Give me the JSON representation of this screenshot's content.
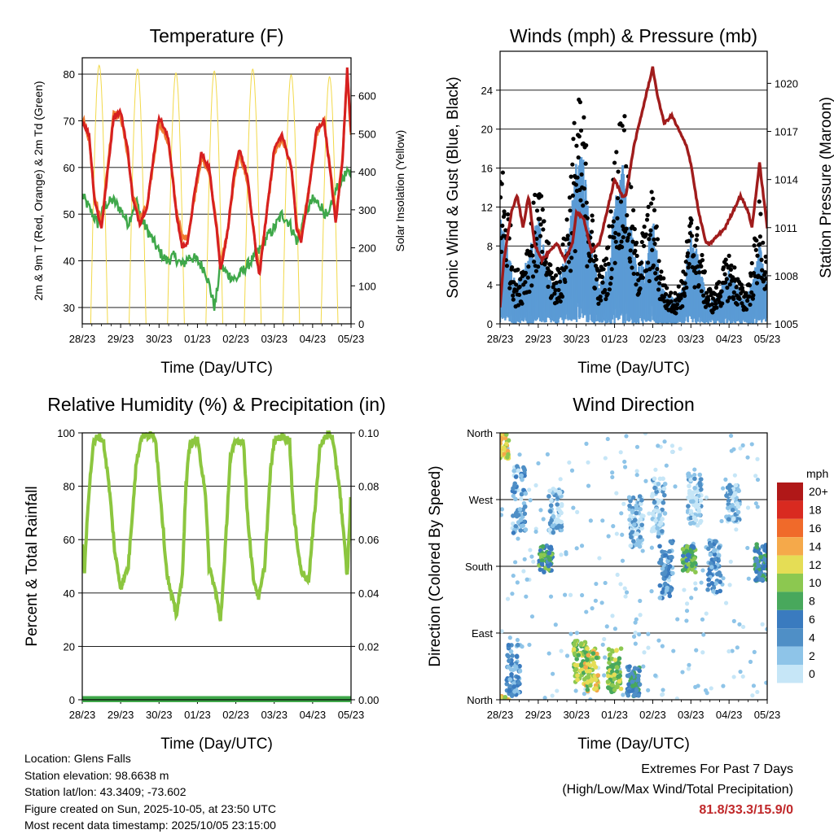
{
  "x_ticks": [
    "28/23",
    "29/23",
    "30/23",
    "01/23",
    "02/23",
    "03/23",
    "04/23",
    "05/23"
  ],
  "xlabel": "Time (Day/UTC)",
  "colors": {
    "temp2m": "#d62020",
    "temp9m": "#f07a30",
    "dewpoint": "#3fa84a",
    "solar": "#f2d94a",
    "sonic": "#5b9bd5",
    "gust": "#000000",
    "pressure": "#a01c1c",
    "rh": "#8cc63f",
    "precip": "#3fa84a",
    "highlight": "#c0282a"
  },
  "chart_data": [
    {
      "type": "line",
      "title": "Temperature (F)",
      "ylabel": "2m & 9m T (Red, Orange) & 2m Td (Green)",
      "ylabel_right": "Solar Insolation (Yellow)",
      "ylim": [
        26.5,
        83.5
      ],
      "ylim_right": [
        0,
        700
      ],
      "yticks": [
        30,
        40,
        50,
        60,
        70,
        80
      ],
      "yticks_right": [
        0,
        100,
        200,
        300,
        400,
        500,
        600
      ],
      "series": [
        {
          "name": "2m T",
          "x": [
            0,
            0.18,
            0.32,
            0.5,
            0.62,
            0.82,
            1.0,
            1.18,
            1.32,
            1.5,
            1.7,
            1.85,
            2.0,
            2.25,
            2.45,
            2.6,
            2.75,
            2.95,
            3.1,
            3.3,
            3.5,
            3.6,
            3.78,
            3.95,
            4.1,
            4.3,
            4.55,
            4.62,
            4.8,
            5.0,
            5.2,
            5.45,
            5.58,
            5.7,
            5.9,
            6.1,
            6.3,
            6.5,
            6.6,
            6.78,
            6.9,
            7.0
          ],
          "values": [
            70,
            67,
            53,
            47,
            56,
            71,
            72,
            64,
            53,
            48,
            52,
            62,
            71,
            66,
            50,
            43,
            44,
            56,
            63,
            60,
            47,
            38,
            46,
            58,
            64,
            58,
            40,
            37,
            50,
            64,
            67,
            60,
            47,
            44,
            55,
            68,
            70,
            56,
            48,
            62,
            81,
            68
          ]
        },
        {
          "name": "9m T",
          "x": [
            0,
            0.18,
            0.32,
            0.5,
            0.62,
            0.82,
            1.0,
            1.18,
            1.32,
            1.5,
            1.7,
            1.85,
            2.0,
            2.25,
            2.45,
            2.6,
            2.75,
            2.95,
            3.1,
            3.3,
            3.5,
            3.6,
            3.78,
            3.95,
            4.1,
            4.3,
            4.55,
            4.62,
            4.8,
            5.0,
            5.2,
            5.45,
            5.58,
            5.7,
            5.9,
            6.1,
            6.3,
            6.5,
            6.6,
            6.78,
            6.9,
            7.0
          ],
          "values": [
            71,
            66,
            54,
            48,
            57,
            72,
            71,
            63,
            54,
            49,
            52,
            61,
            70,
            65,
            51,
            45,
            45,
            55,
            62,
            59,
            48,
            39,
            46,
            57,
            63,
            57,
            41,
            38,
            50,
            63,
            66,
            60,
            48,
            45,
            55,
            67,
            70,
            57,
            49,
            62,
            80,
            67
          ]
        },
        {
          "name": "2m Td",
          "x": [
            0,
            0.2,
            0.4,
            0.6,
            0.8,
            1.0,
            1.2,
            1.4,
            1.6,
            1.8,
            2.0,
            2.2,
            2.4,
            2.6,
            2.8,
            3.0,
            3.2,
            3.3,
            3.45,
            3.6,
            3.8,
            4.0,
            4.2,
            4.4,
            4.6,
            4.8,
            5.0,
            5.2,
            5.4,
            5.6,
            5.8,
            6.0,
            6.2,
            6.4,
            6.6,
            6.8,
            7.0
          ],
          "values": [
            54,
            51,
            48,
            52,
            53,
            51,
            48,
            53,
            48,
            45,
            42,
            40,
            41,
            39,
            41,
            40,
            38,
            35,
            30,
            39,
            37,
            36,
            38,
            40,
            42,
            45,
            47,
            50,
            48,
            44,
            50,
            53,
            52,
            49,
            55,
            58,
            59
          ]
        }
      ],
      "solar": {
        "name": "Solar Insolation",
        "peaks_x": [
          0.44,
          1.44,
          2.44,
          3.44,
          4.44,
          5.44,
          6.44
        ],
        "peaks_values": [
          680,
          670,
          660,
          665,
          670,
          655,
          650
        ]
      }
    },
    {
      "type": "scatter+line",
      "title": "Winds (mph) & Pressure (mb)",
      "ylabel": "Sonic Wind & Gust (Blue, Black)",
      "ylabel_right": "Station Pressure (Maroon)",
      "ylim": [
        0,
        28
      ],
      "ylim_right": [
        1005,
        1022
      ],
      "yticks": [
        0,
        4,
        8,
        12,
        16,
        20,
        24
      ],
      "yticks_right": [
        1005,
        1008,
        1011,
        1014,
        1017,
        1020
      ],
      "wind_envelope": {
        "x": [
          0,
          0.2,
          0.4,
          0.6,
          0.8,
          1.0,
          1.2,
          1.4,
          1.6,
          1.8,
          2.0,
          2.2,
          2.4,
          2.6,
          2.8,
          3.0,
          3.2,
          3.4,
          3.6,
          3.8,
          4.0,
          4.2,
          4.4,
          4.6,
          4.8,
          5.0,
          5.2,
          5.4,
          5.6,
          5.8,
          6.0,
          6.2,
          6.4,
          6.6,
          6.8,
          7.0
        ],
        "sonic": [
          8,
          6,
          3,
          4,
          6,
          8,
          5,
          3,
          4,
          7,
          13,
          12,
          6,
          3,
          4,
          9,
          13,
          8,
          4,
          6,
          8,
          3,
          2,
          2,
          3,
          7,
          5,
          2,
          2,
          3,
          4,
          3,
          2,
          3,
          6,
          3
        ],
        "gust": [
          17,
          12,
          5,
          6,
          10,
          14,
          9,
          5,
          6,
          13,
          22,
          20,
          11,
          5,
          7,
          16,
          22,
          14,
          7,
          10,
          13,
          6,
          3,
          3,
          5,
          11,
          9,
          4,
          3,
          5,
          7,
          5,
          3,
          6,
          12,
          5
        ]
      },
      "pressure": {
        "name": "Station Pressure",
        "x": [
          0,
          0.1,
          0.3,
          0.45,
          0.6,
          0.75,
          0.9,
          1.1,
          1.3,
          1.5,
          1.7,
          1.9,
          2.0,
          2.2,
          2.4,
          2.6,
          2.8,
          3.0,
          3.2,
          3.3,
          3.5,
          3.7,
          3.9,
          4.0,
          4.1,
          4.3,
          4.5,
          4.7,
          4.9,
          5.0,
          5.2,
          5.4,
          5.5,
          5.7,
          5.9,
          6.1,
          6.3,
          6.5,
          6.6,
          6.8,
          7.0
        ],
        "values": [
          1006,
          1009,
          1012,
          1013,
          1011,
          1013,
          1010,
          1009,
          1009.5,
          1010,
          1009,
          1010,
          1012,
          1011.5,
          1009.5,
          1010,
          1012,
          1014,
          1013,
          1013,
          1016,
          1018,
          1020,
          1021,
          1019.5,
          1017.5,
          1018,
          1017,
          1016,
          1015,
          1012,
          1010,
          1010,
          1010.5,
          1011,
          1012,
          1013,
          1012,
          1011,
          1015,
          1011
        ]
      }
    },
    {
      "type": "line",
      "title": "Relative Humidity (%) & Precipitation (in)",
      "ylabel": "Percent & Total Rainfall",
      "ylim": [
        0,
        100
      ],
      "ylim_right": [
        0,
        0.1
      ],
      "yticks": [
        0,
        20,
        40,
        60,
        80,
        100
      ],
      "yticks_right": [
        "0.00",
        "0.02",
        "0.04",
        "0.06",
        "0.08",
        "0.10"
      ],
      "series": [
        {
          "name": "Relative Humidity",
          "x": [
            0,
            0.06,
            0.14,
            0.28,
            0.4,
            0.55,
            0.7,
            0.85,
            1.0,
            1.2,
            1.4,
            1.55,
            1.7,
            1.9,
            2.05,
            2.2,
            2.3,
            2.45,
            2.6,
            2.7,
            2.8,
            3.0,
            3.2,
            3.3,
            3.45,
            3.6,
            3.7,
            3.85,
            4.0,
            4.2,
            4.3,
            4.45,
            4.6,
            4.75,
            4.9,
            5.0,
            5.2,
            5.4,
            5.5,
            5.7,
            5.9,
            6.05,
            6.2,
            6.4,
            6.5,
            6.7,
            6.9,
            7.0
          ],
          "values": [
            58,
            48,
            72,
            95,
            99,
            97,
            80,
            55,
            42,
            50,
            88,
            99,
            99,
            99,
            74,
            48,
            40,
            32,
            45,
            80,
            96,
            97,
            79,
            50,
            42,
            30,
            50,
            90,
            97,
            97,
            70,
            46,
            38,
            50,
            85,
            97,
            99,
            97,
            70,
            48,
            45,
            70,
            96,
            99,
            99,
            80,
            46,
            78
          ]
        },
        {
          "name": "Total Precipitation",
          "x": [
            0,
            7
          ],
          "values": [
            0,
            0
          ]
        }
      ]
    },
    {
      "type": "scatter",
      "title": "Wind Direction",
      "ylabel": "Direction (Colored By Speed)",
      "ylim": [
        0,
        360
      ],
      "yticks": [
        "North",
        "East",
        "South",
        "West",
        "North"
      ],
      "yticks_values": [
        0,
        90,
        180,
        270,
        360
      ],
      "colorbar": {
        "title": "mph",
        "labels": [
          "0",
          "2",
          "4",
          "6",
          "8",
          "10",
          "12",
          "14",
          "16",
          "18",
          "20+"
        ],
        "colors": [
          "#c6e6f7",
          "#8ec4e8",
          "#4f8fc6",
          "#3a7bbf",
          "#48a85c",
          "#8cc850",
          "#e5dd55",
          "#f5a94a",
          "#f06a2a",
          "#d92a20",
          "#b01818"
        ]
      },
      "clusters": [
        {
          "x": 0.05,
          "dir": 345,
          "spread": 20,
          "speed": 12
        },
        {
          "x": 0.5,
          "dir": 270,
          "spread": 45,
          "speed": 3
        },
        {
          "x": 0.35,
          "dir": 40,
          "spread": 35,
          "speed": 4
        },
        {
          "x": 1.2,
          "dir": 190,
          "spread": 18,
          "speed": 7
        },
        {
          "x": 1.45,
          "dir": 255,
          "spread": 30,
          "speed": 2
        },
        {
          "x": 2.1,
          "dir": 50,
          "spread": 30,
          "speed": 10
        },
        {
          "x": 2.4,
          "dir": 40,
          "spread": 30,
          "speed": 11
        },
        {
          "x": 3.0,
          "dir": 40,
          "spread": 30,
          "speed": 10
        },
        {
          "x": 3.5,
          "dir": 25,
          "spread": 20,
          "speed": 6
        },
        {
          "x": 3.55,
          "dir": 240,
          "spread": 35,
          "speed": 2
        },
        {
          "x": 4.15,
          "dir": 260,
          "spread": 40,
          "speed": 1
        },
        {
          "x": 4.35,
          "dir": 175,
          "spread": 40,
          "speed": 4
        },
        {
          "x": 4.95,
          "dir": 190,
          "spread": 18,
          "speed": 8
        },
        {
          "x": 5.1,
          "dir": 270,
          "spread": 35,
          "speed": 1
        },
        {
          "x": 5.6,
          "dir": 180,
          "spread": 35,
          "speed": 4
        },
        {
          "x": 6.1,
          "dir": 265,
          "spread": 25,
          "speed": 2
        },
        {
          "x": 6.85,
          "dir": 185,
          "spread": 25,
          "speed": 6
        }
      ]
    }
  ],
  "info": {
    "location": "Location: Glens Falls",
    "elevation": "Station elevation: 98.6638 m",
    "latlon": "Station lat/lon: 43.3409; -73.602",
    "created": "Figure created on Sun, 2025-10-05, at 23:50 UTC",
    "recent": "Most recent data timestamp: 2025/10/05 23:15:00"
  },
  "extremes": {
    "title": "Extremes For Past 7 Days",
    "subtitle": "(High/Low/Max Wind/Total Precipitation)",
    "value": "81.8/33.3/15.9/0"
  }
}
